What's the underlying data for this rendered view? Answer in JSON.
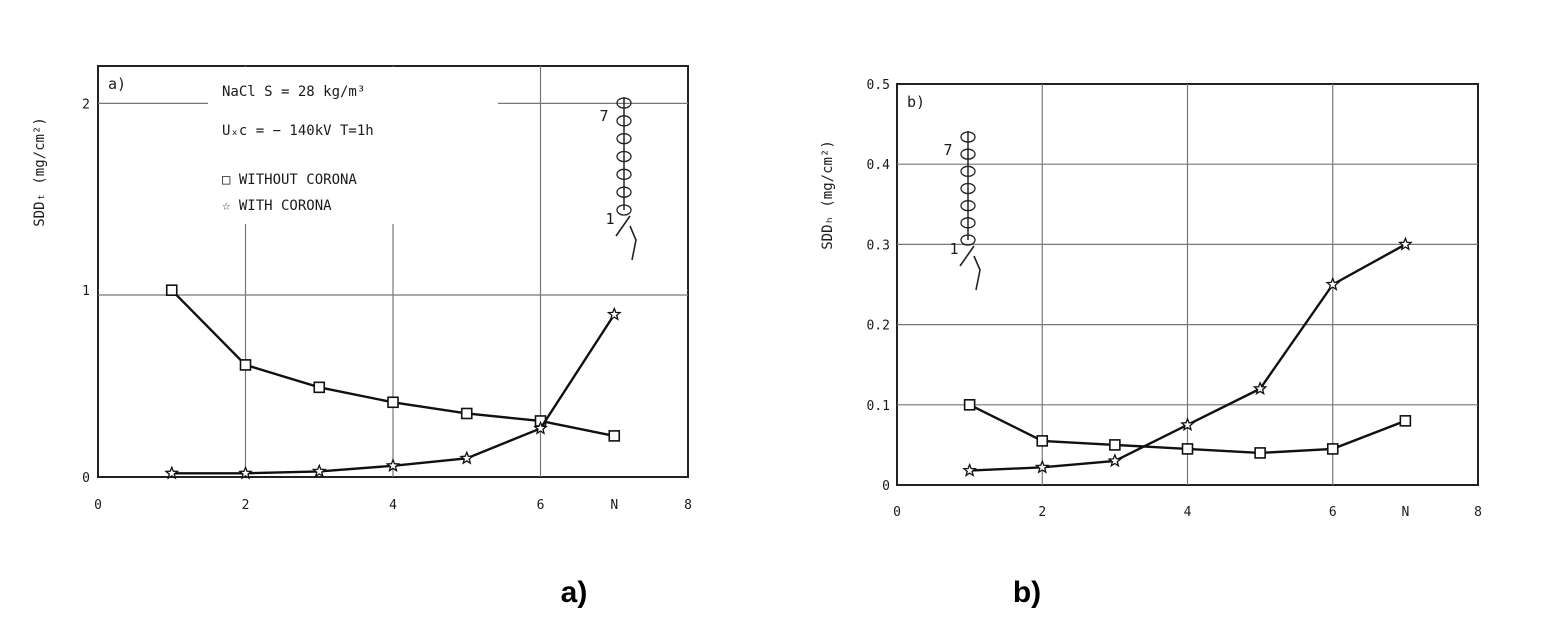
{
  "chart_data": [
    {
      "type": "line",
      "panel_label": "a)",
      "ylabel": "SDDₜ (mg/cm²)",
      "xlim": [
        0,
        8
      ],
      "ylim": [
        0,
        2.2
      ],
      "x_ticks": [
        "0",
        "2",
        "4",
        "6",
        "N",
        "8"
      ],
      "y_ticks": [
        "0",
        "1",
        "2"
      ],
      "annotations": [
        "NaCl  S = 28 kg/m³",
        "Uₓc = − 140kV  T=1h"
      ],
      "legend": [
        "□ WITHOUT CORONA",
        "☆ WITH CORONA"
      ],
      "insulator_labels": [
        "7",
        "1"
      ],
      "grid": true,
      "series": [
        {
          "name": "WITHOUT CORONA",
          "marker": "square",
          "x": [
            1,
            2,
            3,
            4,
            5,
            6,
            7
          ],
          "y": [
            1.0,
            0.6,
            0.48,
            0.4,
            0.34,
            0.3,
            0.22
          ]
        },
        {
          "name": "WITH CORONA",
          "marker": "star",
          "x": [
            1,
            2,
            3,
            4,
            5,
            6,
            7
          ],
          "y": [
            0.02,
            0.02,
            0.03,
            0.06,
            0.1,
            0.26,
            0.87
          ]
        }
      ]
    },
    {
      "type": "line",
      "panel_label": "b)",
      "ylabel": "SDDₕ (mg/cm²)",
      "xlim": [
        0,
        8
      ],
      "ylim": [
        0,
        0.5
      ],
      "x_ticks": [
        "0",
        "2",
        "4",
        "6",
        "N",
        "8"
      ],
      "y_ticks": [
        "0",
        "0.1",
        "0.2",
        "0.3",
        "0.4",
        "0.5"
      ],
      "insulator_labels": [
        "7",
        "1"
      ],
      "grid": true,
      "series": [
        {
          "name": "WITHOUT CORONA",
          "marker": "square",
          "x": [
            1,
            2,
            3,
            4,
            5,
            6,
            7
          ],
          "y": [
            0.1,
            0.055,
            0.05,
            0.045,
            0.04,
            0.045,
            0.08
          ]
        },
        {
          "name": "WITH CORONA",
          "marker": "star",
          "x": [
            1,
            2,
            3,
            4,
            5,
            6,
            7
          ],
          "y": [
            0.018,
            0.022,
            0.03,
            0.075,
            0.12,
            0.25,
            0.3
          ]
        }
      ]
    }
  ],
  "captions": [
    "a)",
    "b)"
  ]
}
